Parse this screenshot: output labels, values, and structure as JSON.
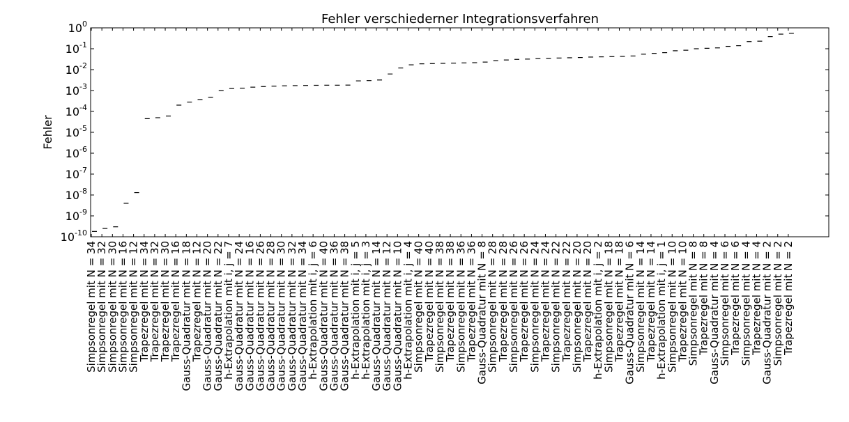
{
  "chart_data": {
    "type": "scatter",
    "title": "Fehler verschiederner Integrationsverfahren",
    "xlabel": "",
    "ylabel": "Fehler",
    "yscale": "log",
    "ylim": [
      1e-10,
      1
    ],
    "yticks": [
      {
        "base": "10",
        "exp": "-10"
      },
      {
        "base": "10",
        "exp": "-9"
      },
      {
        "base": "10",
        "exp": "-8"
      },
      {
        "base": "10",
        "exp": "-7"
      },
      {
        "base": "10",
        "exp": "-6"
      },
      {
        "base": "10",
        "exp": "-5"
      },
      {
        "base": "10",
        "exp": "-4"
      },
      {
        "base": "10",
        "exp": "-3"
      },
      {
        "base": "10",
        "exp": "-2"
      },
      {
        "base": "10",
        "exp": "-1"
      },
      {
        "base": "10",
        "exp": "0"
      }
    ],
    "grid": false,
    "marker": "horizontal dash",
    "categories": [
      "Simpsonregel mit N = 34",
      "Simpsonregel mit N = 32",
      "Simpsonregel mit N = 30",
      "Simpsonregel mit N = 16",
      "Simpsonregel mit N = 12",
      "Trapezregel mit N = 34",
      "Trapezregel mit N = 32",
      "Trapezregel mit N = 30",
      "Trapezregel mit N = 16",
      "Gauss-Quadratur mit N = 18",
      "Trapezregel mit N = 12",
      "Gauss-Quadratur mit N = 20",
      "Gauss-Quadratur mit N = 22",
      "h-Extrapolation mit i, j = 7",
      "Gauss-Quadratur mit N = 24",
      "Gauss-Quadratur mit N = 16",
      "Gauss-Quadratur mit N = 26",
      "Gauss-Quadratur mit N = 28",
      "Gauss-Quadratur mit N = 30",
      "Gauss-Quadratur mit N = 32",
      "Gauss-Quadratur mit N = 34",
      "h-Extrapolation mit i, j = 6",
      "Gauss-Quadratur mit N = 40",
      "Gauss-Quadratur mit N = 36",
      "Gauss-Quadratur mit N = 38",
      "h-Extrapolation mit i, j = 5",
      "h-Extrapolation mit i, j = 3",
      "Gauss-Quadratur mit N = 14",
      "Gauss-Quadratur mit N = 12",
      "Gauss-Quadratur mit N = 10",
      "h-Extrapolation mit i, j = 4",
      "Simpsonregel mit N = 40",
      "Trapezregel mit N = 40",
      "Simpsonregel mit N = 38",
      "Trapezregel mit N = 38",
      "Simpsonregel mit N = 36",
      "Trapezregel mit N = 36",
      "Gauss-Quadratur mit N = 8",
      "Simpsonregel mit N = 28",
      "Trapezregel mit N = 28",
      "Simpsonregel mit N = 26",
      "Trapezregel mit N = 26",
      "Simpsonregel mit N = 24",
      "Trapezregel mit N = 24",
      "Simpsonregel mit N = 22",
      "Trapezregel mit N = 22",
      "Simpsonregel mit N = 20",
      "Trapezregel mit N = 20",
      "h-Extrapolation mit i, j = 2",
      "Simpsonregel mit N = 18",
      "Trapezregel mit N = 18",
      "Gauss-Quadratur mit N = 6",
      "Simpsonregel mit N = 14",
      "Trapezregel mit N = 14",
      "h-Extrapolation mit i, j = 1",
      "Simpsonregel mit N = 10",
      "Trapezregel mit N = 10",
      "Simpsonregel mit N = 8",
      "Trapezregel mit N = 8",
      "Gauss-Quadratur mit N = 4",
      "Simpsonregel mit N = 6",
      "Trapezregel mit N = 6",
      "Simpsonregel mit N = 4",
      "Trapezregel mit N = 4",
      "Gauss-Quadratur mit N = 2",
      "Simpsonregel mit N = 2",
      "Trapezregel mit N = 2"
    ],
    "values": [
      1.8e-10,
      2.5e-10,
      3e-10,
      4e-09,
      1.3e-08,
      4.5e-05,
      5e-05,
      6e-05,
      0.0002,
      0.00028,
      0.00037,
      0.00048,
      0.001,
      0.00125,
      0.0013,
      0.00145,
      0.00155,
      0.00162,
      0.00168,
      0.00172,
      0.00175,
      0.00178,
      0.0018,
      0.0018,
      0.00182,
      0.0029,
      0.003,
      0.0032,
      0.0062,
      0.012,
      0.017,
      0.019,
      0.0195,
      0.02,
      0.0205,
      0.021,
      0.0215,
      0.023,
      0.027,
      0.029,
      0.031,
      0.032,
      0.034,
      0.035,
      0.036,
      0.037,
      0.038,
      0.04,
      0.041,
      0.042,
      0.043,
      0.045,
      0.055,
      0.06,
      0.065,
      0.08,
      0.085,
      0.1,
      0.105,
      0.11,
      0.13,
      0.14,
      0.22,
      0.23,
      0.38,
      0.5,
      0.55
    ]
  }
}
